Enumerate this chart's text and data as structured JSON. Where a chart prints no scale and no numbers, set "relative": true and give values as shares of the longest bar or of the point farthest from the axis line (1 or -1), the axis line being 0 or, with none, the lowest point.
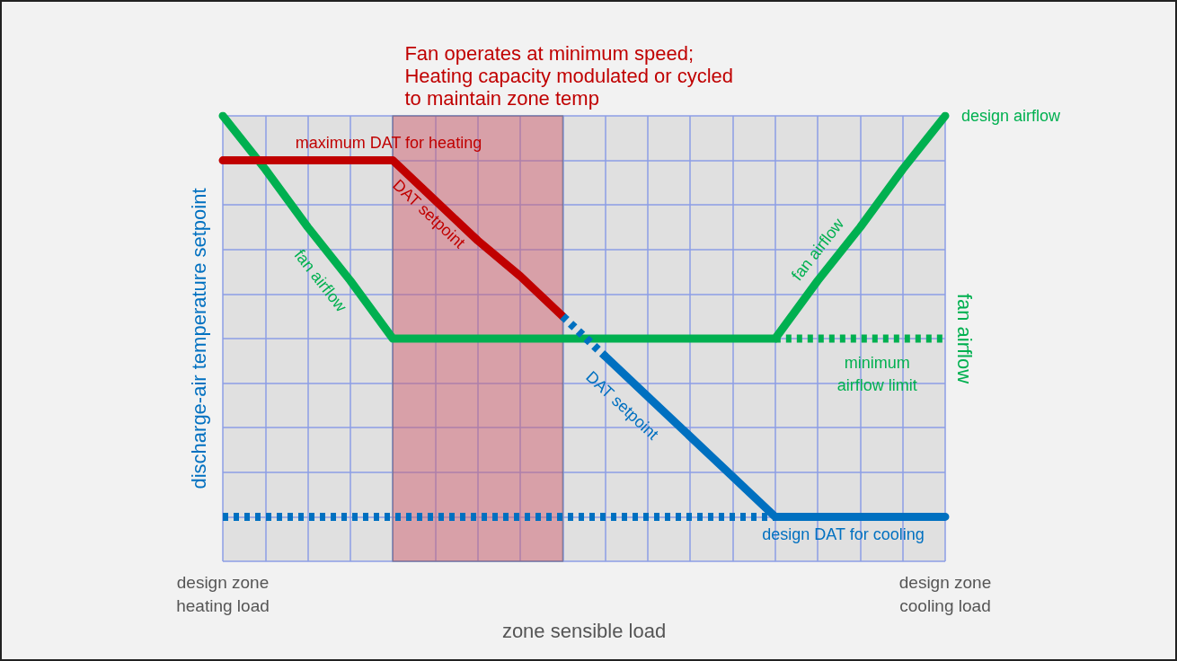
{
  "chart_data": {
    "type": "line",
    "relative": true,
    "xlabel": "zone sensible load",
    "ylabel": "discharge-air temperature setpoint",
    "y2label": "fan airflow",
    "categories": [
      "design zone\nheating load",
      null,
      null,
      null,
      null,
      null,
      null,
      null,
      null,
      null,
      null,
      null,
      null,
      null,
      null,
      null,
      null,
      "design zone\ncooling load"
    ],
    "series": [
      {
        "color": "#00b050",
        "values": [
          1,
          0.88,
          0.75,
          0.63,
          0.5,
          0.5,
          0.5,
          0.5,
          0.5,
          0.5,
          0.5,
          0.5,
          0.5,
          0.5,
          0.63,
          0.75,
          0.88,
          1
        ],
        "line_style": "solid"
      },
      {
        "color": "#00b050",
        "values": [
          null,
          null,
          null,
          null,
          null,
          null,
          null,
          null,
          null,
          null,
          null,
          null,
          null,
          0.5,
          0.5,
          0.5,
          0.5,
          0.5
        ],
        "line_style": "dotted"
      },
      {
        "color": "#c00000",
        "values": [
          0.9,
          0.9,
          0.9,
          0.9,
          0.9,
          0.81,
          0.72,
          0.64,
          0.55,
          null,
          null,
          null,
          null,
          null,
          null,
          null,
          null,
          null
        ],
        "line_style": "solid"
      },
      {
        "color": "#0070c0",
        "values": [
          null,
          null,
          null,
          null,
          null,
          null,
          null,
          null,
          0.55,
          0.46,
          null,
          null,
          null,
          null,
          null,
          null,
          null,
          null
        ],
        "line_style": "dotted"
      },
      {
        "color": "#0070c0",
        "values": [
          null,
          null,
          null,
          null,
          null,
          null,
          null,
          null,
          null,
          0.46,
          0.37,
          0.28,
          0.19,
          0.1,
          0.1,
          0.1,
          0.1,
          0.1
        ],
        "line_style": "solid"
      },
      {
        "color": "#0070c0",
        "values": [
          0.1,
          0.1,
          0.1,
          0.1,
          0.1,
          0.1,
          0.1,
          0.1,
          0.1,
          0.1,
          0.1,
          0.1,
          0.1,
          0.1,
          null,
          null,
          null,
          null
        ],
        "line_style": "dotted"
      }
    ],
    "annotations": [
      "Fan operates at minimum speed;\nHeating capacity modulated or cycled\nto maintain zone temp",
      "maximum DAT for heating",
      "DAT setpoint",
      "fan airflow",
      "fan airflow",
      "design airflow",
      "minimum\nairflow limit",
      "DAT setpoint",
      "design DAT for cooling"
    ],
    "grid": true,
    "marker": "none"
  }
}
